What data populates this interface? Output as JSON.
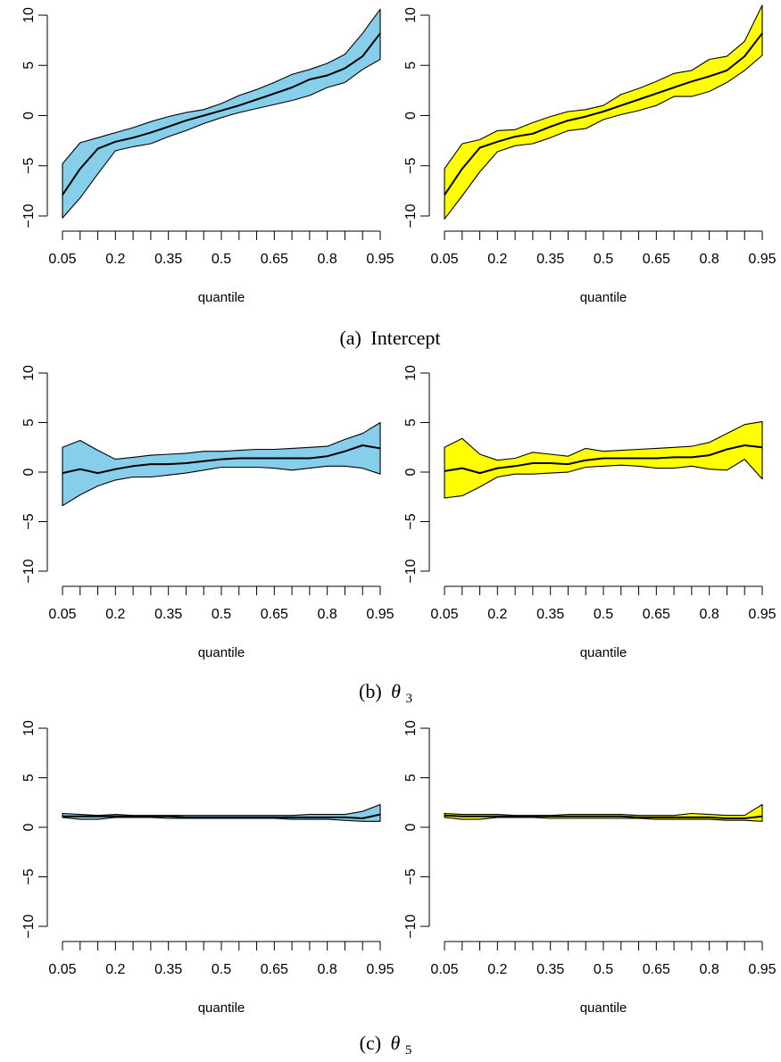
{
  "panel_captions": [
    {
      "prefix": "(a)",
      "text": "Intercept",
      "sub": ""
    },
    {
      "prefix": "(b)",
      "text": "θ",
      "sub": "3"
    },
    {
      "prefix": "(c)",
      "text": "θ",
      "sub": "5"
    }
  ],
  "colors": {
    "blue_fill": "#87CEEB",
    "yellow_fill": "#FFFF00",
    "line": "#000000"
  },
  "chart_data": [
    {
      "type": "area",
      "row": 0,
      "col": 0,
      "fill": "#87CEEB",
      "xlabel": "quantile",
      "ylabel": "",
      "xlim": [
        0.05,
        0.95
      ],
      "ylim": [
        -10,
        10
      ],
      "xticks": [
        0.05,
        0.1,
        0.15,
        0.2,
        0.25,
        0.3,
        0.35,
        0.4,
        0.45,
        0.5,
        0.55,
        0.6,
        0.65,
        0.7,
        0.75,
        0.8,
        0.85,
        0.9,
        0.95
      ],
      "xtick_labels": [
        "0.05",
        "0.2",
        "0.35",
        "0.5",
        "0.65",
        "0.8",
        "0.95"
      ],
      "xtick_label_values": [
        0.05,
        0.2,
        0.35,
        0.5,
        0.65,
        0.8,
        0.95
      ],
      "yticks": [
        -10,
        -5,
        0,
        5,
        10
      ],
      "ytick_labels": [
        "−10",
        "−5",
        "0",
        "5",
        "10"
      ],
      "x": [
        0.05,
        0.1,
        0.15,
        0.2,
        0.25,
        0.3,
        0.35,
        0.4,
        0.45,
        0.5,
        0.55,
        0.6,
        0.65,
        0.7,
        0.75,
        0.8,
        0.85,
        0.9,
        0.95
      ],
      "upper": [
        -4.8,
        -2.7,
        -2.2,
        -1.7,
        -1.2,
        -0.6,
        -0.1,
        0.3,
        0.6,
        1.2,
        2.0,
        2.6,
        3.3,
        4.1,
        4.6,
        5.2,
        6.1,
        8.2,
        10.6
      ],
      "median": [
        -7.9,
        -5.3,
        -3.3,
        -2.6,
        -2.2,
        -1.7,
        -1.1,
        -0.5,
        0.0,
        0.5,
        1.0,
        1.6,
        2.2,
        2.8,
        3.6,
        4.0,
        4.7,
        5.9,
        8.2
      ],
      "lower": [
        -10.2,
        -8.2,
        -5.8,
        -3.5,
        -3.1,
        -2.8,
        -2.1,
        -1.5,
        -0.8,
        -0.2,
        0.3,
        0.7,
        1.1,
        1.5,
        2.0,
        2.8,
        3.3,
        4.6,
        5.6
      ]
    },
    {
      "type": "area",
      "row": 0,
      "col": 1,
      "fill": "#FFFF00",
      "xlabel": "quantile",
      "ylabel": "",
      "xlim": [
        0.05,
        0.95
      ],
      "ylim": [
        -10,
        10
      ],
      "xticks": [
        0.05,
        0.1,
        0.15,
        0.2,
        0.25,
        0.3,
        0.35,
        0.4,
        0.45,
        0.5,
        0.55,
        0.6,
        0.65,
        0.7,
        0.75,
        0.8,
        0.85,
        0.9,
        0.95
      ],
      "xtick_labels": [
        "0.05",
        "0.2",
        "0.35",
        "0.5",
        "0.65",
        "0.8",
        "0.95"
      ],
      "xtick_label_values": [
        0.05,
        0.2,
        0.35,
        0.5,
        0.65,
        0.8,
        0.95
      ],
      "yticks": [
        -10,
        -5,
        0,
        5,
        10
      ],
      "ytick_labels": [
        "−10",
        "−5",
        "0",
        "5",
        "10"
      ],
      "x": [
        0.05,
        0.1,
        0.15,
        0.2,
        0.25,
        0.3,
        0.35,
        0.4,
        0.45,
        0.5,
        0.55,
        0.6,
        0.65,
        0.7,
        0.75,
        0.8,
        0.85,
        0.9,
        0.95
      ],
      "upper": [
        -5.3,
        -2.8,
        -2.4,
        -1.5,
        -1.4,
        -0.7,
        -0.1,
        0.4,
        0.6,
        1.0,
        2.1,
        2.7,
        3.4,
        4.2,
        4.5,
        5.6,
        5.9,
        7.4,
        11.0
      ],
      "median": [
        -7.9,
        -5.3,
        -3.2,
        -2.6,
        -2.1,
        -1.8,
        -1.1,
        -0.5,
        -0.1,
        0.4,
        1.0,
        1.6,
        2.2,
        2.8,
        3.4,
        3.9,
        4.5,
        5.9,
        8.2
      ],
      "lower": [
        -10.3,
        -8.0,
        -5.6,
        -3.6,
        -3.0,
        -2.8,
        -2.2,
        -1.5,
        -1.3,
        -0.4,
        0.1,
        0.5,
        1.0,
        1.9,
        1.9,
        2.4,
        3.3,
        4.5,
        6.0
      ]
    },
    {
      "type": "area",
      "row": 1,
      "col": 0,
      "fill": "#87CEEB",
      "xlabel": "quantile",
      "ylabel": "",
      "xlim": [
        0.05,
        0.95
      ],
      "ylim": [
        -10,
        10
      ],
      "xticks": [
        0.05,
        0.1,
        0.15,
        0.2,
        0.25,
        0.3,
        0.35,
        0.4,
        0.45,
        0.5,
        0.55,
        0.6,
        0.65,
        0.7,
        0.75,
        0.8,
        0.85,
        0.9,
        0.95
      ],
      "xtick_labels": [
        "0.05",
        "0.2",
        "0.35",
        "0.5",
        "0.65",
        "0.8",
        "0.95"
      ],
      "xtick_label_values": [
        0.05,
        0.2,
        0.35,
        0.5,
        0.65,
        0.8,
        0.95
      ],
      "yticks": [
        -10,
        -5,
        0,
        5,
        10
      ],
      "ytick_labels": [
        "−10",
        "−5",
        "0",
        "5",
        "10"
      ],
      "x": [
        0.05,
        0.1,
        0.15,
        0.2,
        0.25,
        0.3,
        0.35,
        0.4,
        0.45,
        0.5,
        0.55,
        0.6,
        0.65,
        0.7,
        0.75,
        0.8,
        0.85,
        0.9,
        0.95
      ],
      "upper": [
        2.5,
        3.2,
        2.2,
        1.3,
        1.5,
        1.7,
        1.8,
        1.9,
        2.1,
        2.1,
        2.2,
        2.3,
        2.3,
        2.4,
        2.5,
        2.6,
        3.3,
        3.9,
        5.0
      ],
      "median": [
        -0.1,
        0.3,
        -0.1,
        0.3,
        0.6,
        0.8,
        0.8,
        0.9,
        1.1,
        1.3,
        1.4,
        1.4,
        1.4,
        1.4,
        1.4,
        1.6,
        2.1,
        2.7,
        2.4
      ],
      "lower": [
        -3.4,
        -2.3,
        -1.4,
        -0.8,
        -0.5,
        -0.5,
        -0.3,
        -0.1,
        0.2,
        0.5,
        0.5,
        0.5,
        0.4,
        0.2,
        0.4,
        0.6,
        0.6,
        0.4,
        -0.2
      ]
    },
    {
      "type": "area",
      "row": 1,
      "col": 1,
      "fill": "#FFFF00",
      "xlabel": "quantile",
      "ylabel": "",
      "xlim": [
        0.05,
        0.95
      ],
      "ylim": [
        -10,
        10
      ],
      "xticks": [
        0.05,
        0.1,
        0.15,
        0.2,
        0.25,
        0.3,
        0.35,
        0.4,
        0.45,
        0.5,
        0.55,
        0.6,
        0.65,
        0.7,
        0.75,
        0.8,
        0.85,
        0.9,
        0.95
      ],
      "xtick_labels": [
        "0.05",
        "0.2",
        "0.35",
        "0.5",
        "0.65",
        "0.8",
        "0.95"
      ],
      "xtick_label_values": [
        0.05,
        0.2,
        0.35,
        0.5,
        0.65,
        0.8,
        0.95
      ],
      "yticks": [
        -10,
        -5,
        0,
        5,
        10
      ],
      "ytick_labels": [
        "−10",
        "−5",
        "0",
        "5",
        "10"
      ],
      "x": [
        0.05,
        0.1,
        0.15,
        0.2,
        0.25,
        0.3,
        0.35,
        0.4,
        0.45,
        0.5,
        0.55,
        0.6,
        0.65,
        0.7,
        0.75,
        0.8,
        0.85,
        0.9,
        0.95
      ],
      "upper": [
        2.5,
        3.4,
        1.8,
        1.2,
        1.4,
        2.0,
        1.8,
        1.6,
        2.4,
        2.1,
        2.2,
        2.3,
        2.4,
        2.5,
        2.6,
        3.0,
        3.9,
        4.8,
        5.1
      ],
      "median": [
        0.1,
        0.4,
        -0.1,
        0.4,
        0.6,
        0.9,
        0.9,
        0.8,
        1.2,
        1.4,
        1.4,
        1.4,
        1.4,
        1.5,
        1.5,
        1.7,
        2.3,
        2.7,
        2.5
      ],
      "lower": [
        -2.6,
        -2.4,
        -1.5,
        -0.5,
        -0.2,
        -0.2,
        -0.1,
        0.0,
        0.5,
        0.6,
        0.7,
        0.6,
        0.4,
        0.4,
        0.6,
        0.3,
        0.2,
        1.3,
        -0.7
      ]
    },
    {
      "type": "area",
      "row": 2,
      "col": 0,
      "fill": "#87CEEB",
      "xlabel": "quantile",
      "ylabel": "",
      "xlim": [
        0.05,
        0.95
      ],
      "ylim": [
        -10,
        10
      ],
      "xticks": [
        0.05,
        0.1,
        0.15,
        0.2,
        0.25,
        0.3,
        0.35,
        0.4,
        0.45,
        0.5,
        0.55,
        0.6,
        0.65,
        0.7,
        0.75,
        0.8,
        0.85,
        0.9,
        0.95
      ],
      "xtick_labels": [
        "0.05",
        "0.2",
        "0.35",
        "0.5",
        "0.65",
        "0.8",
        "0.95"
      ],
      "xtick_label_values": [
        0.05,
        0.2,
        0.35,
        0.5,
        0.65,
        0.8,
        0.95
      ],
      "yticks": [
        -10,
        -5,
        0,
        5,
        10
      ],
      "ytick_labels": [
        "−10",
        "−5",
        "0",
        "5",
        "10"
      ],
      "x": [
        0.05,
        0.1,
        0.15,
        0.2,
        0.25,
        0.3,
        0.35,
        0.4,
        0.45,
        0.5,
        0.55,
        0.6,
        0.65,
        0.7,
        0.75,
        0.8,
        0.85,
        0.9,
        0.95
      ],
      "upper": [
        1.4,
        1.3,
        1.2,
        1.3,
        1.2,
        1.2,
        1.2,
        1.2,
        1.2,
        1.2,
        1.2,
        1.2,
        1.2,
        1.2,
        1.3,
        1.3,
        1.3,
        1.6,
        2.3
      ],
      "median": [
        1.1,
        1.1,
        1.1,
        1.1,
        1.1,
        1.1,
        1.1,
        1.0,
        1.0,
        1.0,
        1.0,
        1.0,
        1.0,
        1.0,
        1.0,
        1.0,
        1.0,
        0.9,
        1.3
      ],
      "lower": [
        1.0,
        0.8,
        0.8,
        1.0,
        1.0,
        1.0,
        0.9,
        0.9,
        0.9,
        0.9,
        0.9,
        0.9,
        0.9,
        0.8,
        0.8,
        0.8,
        0.7,
        0.6,
        0.6
      ]
    },
    {
      "type": "area",
      "row": 2,
      "col": 1,
      "fill": "#FFFF00",
      "xlabel": "quantile",
      "ylabel": "",
      "xlim": [
        0.05,
        0.95
      ],
      "ylim": [
        -10,
        10
      ],
      "xticks": [
        0.05,
        0.1,
        0.15,
        0.2,
        0.25,
        0.3,
        0.35,
        0.4,
        0.45,
        0.5,
        0.55,
        0.6,
        0.65,
        0.7,
        0.75,
        0.8,
        0.85,
        0.9,
        0.95
      ],
      "xtick_labels": [
        "0.05",
        "0.2",
        "0.35",
        "0.5",
        "0.65",
        "0.8",
        "0.95"
      ],
      "xtick_label_values": [
        0.05,
        0.2,
        0.35,
        0.5,
        0.65,
        0.8,
        0.95
      ],
      "yticks": [
        -10,
        -5,
        0,
        5,
        10
      ],
      "ytick_labels": [
        "−10",
        "−5",
        "0",
        "5",
        "10"
      ],
      "x": [
        0.05,
        0.1,
        0.15,
        0.2,
        0.25,
        0.3,
        0.35,
        0.4,
        0.45,
        0.5,
        0.55,
        0.6,
        0.65,
        0.7,
        0.75,
        0.8,
        0.85,
        0.9,
        0.95
      ],
      "upper": [
        1.4,
        1.3,
        1.3,
        1.3,
        1.2,
        1.2,
        1.2,
        1.3,
        1.3,
        1.3,
        1.3,
        1.2,
        1.2,
        1.2,
        1.4,
        1.3,
        1.2,
        1.2,
        2.3
      ],
      "median": [
        1.2,
        1.1,
        1.1,
        1.1,
        1.1,
        1.1,
        1.1,
        1.1,
        1.1,
        1.1,
        1.1,
        1.0,
        1.0,
        1.0,
        1.0,
        1.0,
        0.9,
        0.9,
        1.1
      ],
      "lower": [
        1.0,
        0.8,
        0.8,
        1.0,
        1.0,
        1.0,
        0.9,
        0.9,
        0.9,
        0.9,
        0.9,
        0.9,
        0.8,
        0.8,
        0.8,
        0.8,
        0.7,
        0.7,
        0.6
      ]
    }
  ]
}
